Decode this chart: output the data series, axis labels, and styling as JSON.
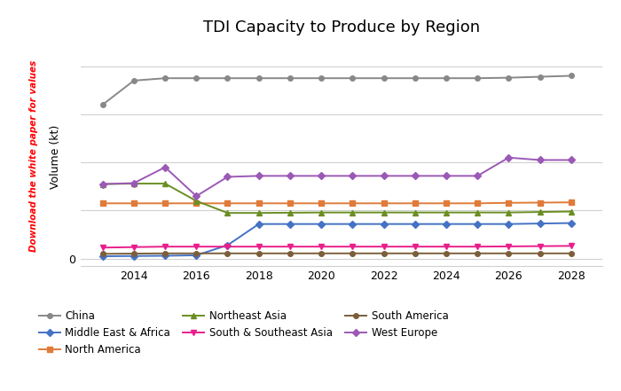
{
  "title": "TDI Capacity to Produce by Region",
  "ylabel": "Volume (kt)",
  "watermark": "Download the white paper for values",
  "years": [
    2013,
    2014,
    2015,
    2016,
    2017,
    2018,
    2019,
    2020,
    2021,
    2022,
    2023,
    2024,
    2025,
    2026,
    2027,
    2028
  ],
  "series": {
    "China": [
      3200,
      3700,
      3750,
      3750,
      3750,
      3750,
      3750,
      3750,
      3750,
      3750,
      3750,
      3750,
      3750,
      3760,
      3780,
      3800
    ],
    "West Europe": [
      1550,
      1570,
      1900,
      1300,
      1700,
      1720,
      1720,
      1720,
      1720,
      1720,
      1720,
      1720,
      1720,
      2100,
      2050,
      2050
    ],
    "Northeast Asia": [
      1550,
      1560,
      1560,
      1200,
      950,
      950,
      955,
      960,
      960,
      960,
      960,
      960,
      960,
      960,
      970,
      980
    ],
    "North America": [
      1150,
      1150,
      1150,
      1150,
      1150,
      1150,
      1150,
      1150,
      1150,
      1150,
      1150,
      1150,
      1150,
      1160,
      1165,
      1170
    ],
    "Middle East & Africa": [
      50,
      55,
      60,
      70,
      280,
      720,
      720,
      720,
      720,
      720,
      720,
      720,
      720,
      720,
      730,
      740
    ],
    "South & Southeast Asia": [
      230,
      240,
      250,
      250,
      250,
      250,
      250,
      250,
      250,
      250,
      250,
      250,
      250,
      255,
      260,
      265
    ],
    "South America": [
      100,
      105,
      110,
      110,
      110,
      110,
      110,
      110,
      110,
      110,
      110,
      110,
      110,
      110,
      110,
      110
    ]
  },
  "colors": {
    "China": "#888888",
    "West Europe": "#9B59B6",
    "Northeast Asia": "#6B8E23",
    "North America": "#E07B39",
    "Middle East & Africa": "#4472C4",
    "South & Southeast Asia": "#E91E8C",
    "South America": "#7B5E3A"
  },
  "markers": {
    "China": "o",
    "West Europe": "D",
    "Northeast Asia": "^",
    "North America": "s",
    "Middle East & Africa": "D",
    "South & Southeast Asia": "v",
    "South America": "o"
  },
  "legend_order": [
    "China",
    "Middle East & Africa",
    "North America",
    "Northeast Asia",
    "South & Southeast Asia",
    "South America",
    "West Europe"
  ],
  "ylim": [
    -150,
    4400
  ],
  "yticks": [
    0,
    1000,
    2000,
    3000,
    4000
  ],
  "yticklabels": [
    "0",
    "",
    "",
    "",
    ""
  ],
  "xticks": [
    2014,
    2016,
    2018,
    2020,
    2022,
    2024,
    2026,
    2028
  ],
  "background_color": "#ffffff",
  "grid_color": "#d0d0d0"
}
